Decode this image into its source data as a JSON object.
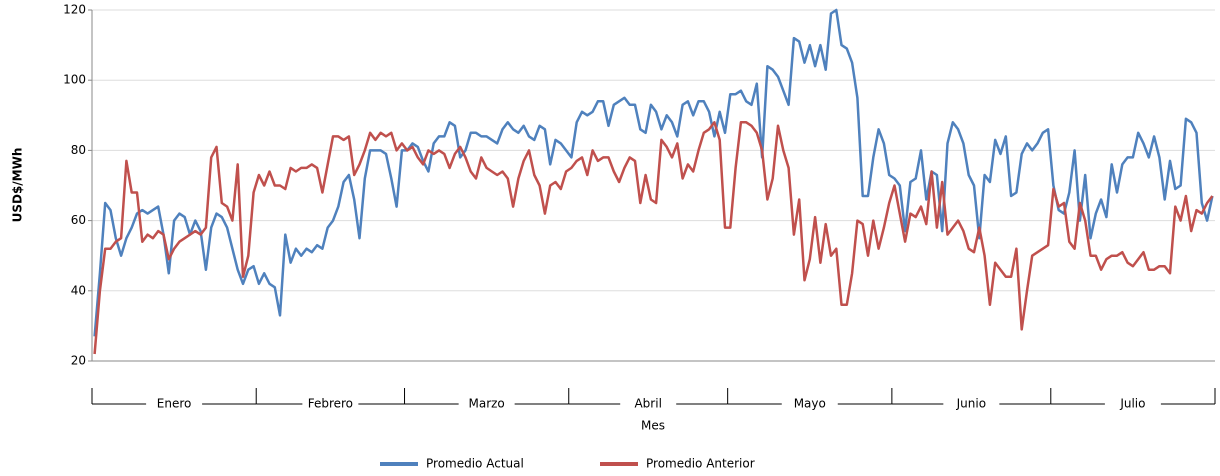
{
  "chart_data": {
    "type": "line",
    "y_label": "USD$/MWh",
    "x_label": "Mes",
    "categories": [
      "Enero",
      "Febrero",
      "Marzo",
      "Abril",
      "Mayo",
      "Junio",
      "Julio"
    ],
    "ylim": [
      20,
      120
    ],
    "yticks": [
      20,
      40,
      60,
      80,
      100,
      120
    ],
    "grid": true,
    "series": [
      {
        "name": "Promedio Actual",
        "color": "#4f81bd",
        "values": [
          [
            27,
            45,
            65,
            63,
            55,
            50,
            55,
            58,
            62,
            63,
            62,
            63,
            64,
            56,
            45,
            60,
            62,
            61,
            56,
            60,
            57,
            46,
            58,
            62,
            61,
            58,
            52,
            46,
            42,
            46,
            47
          ],
          [
            42,
            45,
            42,
            41,
            33,
            56,
            48,
            52,
            50,
            52,
            51,
            53,
            52,
            58,
            60,
            64,
            71,
            73,
            66,
            55,
            72,
            80,
            80,
            80,
            79,
            72,
            64,
            80
          ],
          [
            80,
            82,
            81,
            77,
            74,
            82,
            84,
            84,
            88,
            87,
            78,
            80,
            85,
            85,
            84,
            84,
            83,
            82,
            86,
            88,
            86,
            85,
            87,
            84,
            83,
            87,
            86,
            76,
            83,
            82,
            80
          ],
          [
            78,
            88,
            91,
            90,
            91,
            94,
            94,
            87,
            93,
            94,
            95,
            93,
            93,
            86,
            85,
            93,
            91,
            86,
            90,
            88,
            84,
            93,
            94,
            90,
            94,
            94,
            91,
            84,
            91,
            85
          ],
          [
            96,
            96,
            97,
            94,
            93,
            99,
            78,
            104,
            103,
            101,
            97,
            93,
            112,
            111,
            105,
            110,
            104,
            110,
            103,
            119,
            120,
            110,
            109,
            105,
            95,
            67,
            67,
            78,
            86,
            82,
            73
          ],
          [
            72,
            70,
            57,
            71,
            72,
            80,
            66,
            74,
            73,
            57,
            82,
            88,
            86,
            82,
            73,
            70,
            55,
            73,
            71,
            83,
            79,
            84,
            67,
            68,
            79,
            82,
            80,
            82,
            85,
            86
          ],
          [
            70,
            63,
            62,
            68,
            80,
            60,
            73,
            55,
            62,
            66,
            61,
            76,
            68,
            76,
            78,
            78,
            85,
            82,
            78,
            84,
            78,
            66,
            77,
            69,
            70,
            89,
            88,
            85,
            65,
            60,
            67
          ]
        ]
      },
      {
        "name": "Promedio Anterior",
        "color": "#c0504d",
        "values": [
          [
            22,
            40,
            52,
            52,
            54,
            55,
            77,
            68,
            68,
            54,
            56,
            55,
            57,
            56,
            49,
            52,
            54,
            55,
            56,
            57,
            56,
            58,
            78,
            81,
            65,
            64,
            60,
            76,
            44,
            50,
            68
          ],
          [
            73,
            70,
            74,
            70,
            70,
            69,
            75,
            74,
            75,
            75,
            76,
            75,
            68,
            76,
            84,
            84,
            83,
            84,
            73,
            76,
            80,
            85,
            83,
            85,
            84,
            85,
            80,
            82
          ],
          [
            80,
            81,
            78,
            76,
            80,
            79,
            80,
            79,
            75,
            79,
            81,
            78,
            74,
            72,
            78,
            75,
            74,
            73,
            74,
            72,
            64,
            72,
            77,
            80,
            73,
            70,
            62,
            70,
            71,
            69,
            74
          ],
          [
            75,
            77,
            78,
            73,
            80,
            77,
            78,
            78,
            74,
            71,
            75,
            78,
            77,
            65,
            73,
            66,
            65,
            83,
            81,
            78,
            82,
            72,
            76,
            74,
            80,
            85,
            86,
            88,
            83,
            58
          ],
          [
            58,
            75,
            88,
            88,
            87,
            85,
            80,
            66,
            72,
            87,
            80,
            75,
            56,
            66,
            43,
            49,
            61,
            48,
            59,
            50,
            52,
            36,
            36,
            45,
            60,
            59,
            50,
            60,
            52,
            58,
            65
          ],
          [
            70,
            62,
            54,
            62,
            61,
            64,
            59,
            74,
            58,
            71,
            56,
            58,
            60,
            57,
            52,
            51,
            58,
            50,
            36,
            48,
            46,
            44,
            44,
            52,
            29,
            40,
            50,
            51,
            52,
            53
          ],
          [
            69,
            64,
            65,
            54,
            52,
            65,
            60,
            50,
            50,
            46,
            49,
            50,
            50,
            51,
            48,
            47,
            49,
            51,
            46,
            46,
            47,
            47,
            45,
            64,
            60,
            67,
            57,
            63,
            62,
            65,
            67
          ]
        ]
      }
    ]
  }
}
